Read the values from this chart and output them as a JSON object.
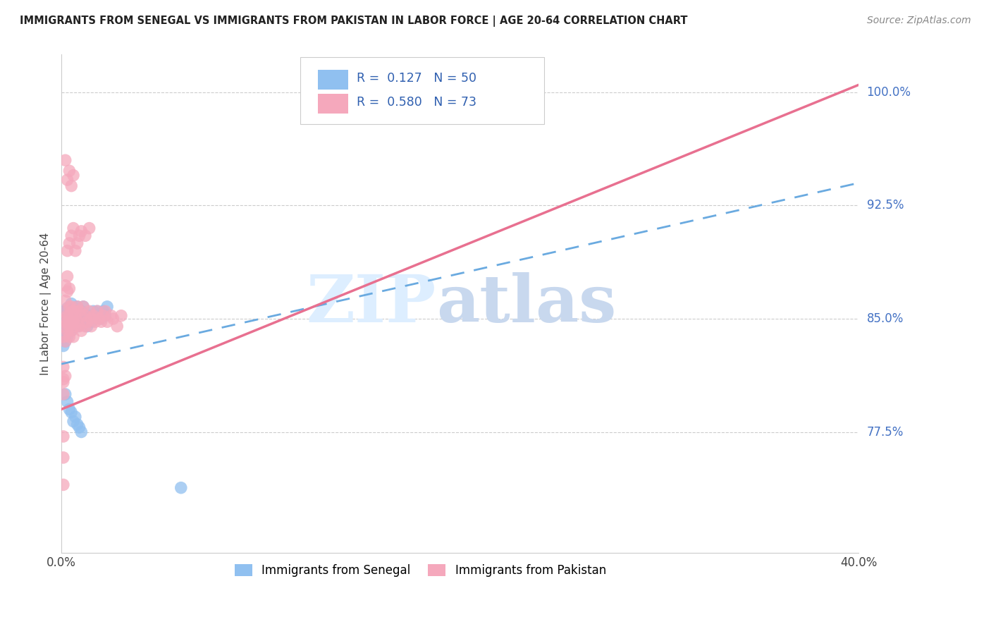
{
  "title": "IMMIGRANTS FROM SENEGAL VS IMMIGRANTS FROM PAKISTAN IN LABOR FORCE | AGE 20-64 CORRELATION CHART",
  "source": "Source: ZipAtlas.com",
  "ylabel": "In Labor Force | Age 20-64",
  "xlim": [
    0.0,
    0.4
  ],
  "ylim": [
    0.695,
    1.025
  ],
  "xtick_positions": [
    0.0,
    0.4
  ],
  "xticklabels": [
    "0.0%",
    "40.0%"
  ],
  "ytick_positions": [
    0.775,
    0.85,
    0.925,
    1.0
  ],
  "ytick_labels": [
    "77.5%",
    "85.0%",
    "92.5%",
    "100.0%"
  ],
  "senegal_R": 0.127,
  "senegal_N": 50,
  "pakistan_R": 0.58,
  "pakistan_N": 73,
  "senegal_color": "#90C0F0",
  "pakistan_color": "#F5A8BC",
  "senegal_line_color": "#6AAAE0",
  "pakistan_line_color": "#E87090",
  "watermark_zip": "ZIP",
  "watermark_atlas": "atlas",
  "watermark_color_zip": "#DDEEFF",
  "watermark_color_atlas": "#C8D8EE",
  "legend_label_senegal": "Immigrants from Senegal",
  "legend_label_pakistan": "Immigrants from Pakistan",
  "sen_line_x0": 0.0,
  "sen_line_y0": 0.82,
  "sen_line_x1": 0.4,
  "sen_line_y1": 0.94,
  "pak_line_x0": 0.0,
  "pak_line_y0": 0.79,
  "pak_line_x1": 0.4,
  "pak_line_y1": 1.005,
  "senegal_pts_x": [
    0.001,
    0.001,
    0.001,
    0.002,
    0.002,
    0.002,
    0.002,
    0.003,
    0.003,
    0.003,
    0.003,
    0.003,
    0.004,
    0.004,
    0.004,
    0.005,
    0.005,
    0.005,
    0.005,
    0.006,
    0.006,
    0.007,
    0.007,
    0.008,
    0.008,
    0.009,
    0.01,
    0.01,
    0.011,
    0.012,
    0.013,
    0.014,
    0.015,
    0.016,
    0.017,
    0.018,
    0.02,
    0.021,
    0.022,
    0.023,
    0.002,
    0.003,
    0.004,
    0.005,
    0.006,
    0.007,
    0.008,
    0.009,
    0.01,
    0.06
  ],
  "senegal_pts_y": [
    0.84,
    0.832,
    0.845,
    0.848,
    0.838,
    0.855,
    0.835,
    0.85,
    0.842,
    0.857,
    0.845,
    0.838,
    0.852,
    0.843,
    0.848,
    0.855,
    0.848,
    0.842,
    0.86,
    0.852,
    0.845,
    0.855,
    0.848,
    0.858,
    0.845,
    0.852,
    0.855,
    0.848,
    0.858,
    0.85,
    0.845,
    0.852,
    0.848,
    0.855,
    0.852,
    0.855,
    0.85,
    0.855,
    0.852,
    0.858,
    0.8,
    0.795,
    0.79,
    0.788,
    0.782,
    0.785,
    0.78,
    0.778,
    0.775,
    0.738
  ],
  "pakistan_pts_x": [
    0.001,
    0.001,
    0.002,
    0.002,
    0.002,
    0.003,
    0.003,
    0.003,
    0.004,
    0.004,
    0.004,
    0.004,
    0.005,
    0.005,
    0.005,
    0.006,
    0.006,
    0.006,
    0.007,
    0.007,
    0.008,
    0.008,
    0.009,
    0.009,
    0.01,
    0.01,
    0.011,
    0.012,
    0.012,
    0.013,
    0.014,
    0.015,
    0.015,
    0.016,
    0.017,
    0.018,
    0.019,
    0.02,
    0.021,
    0.022,
    0.023,
    0.025,
    0.026,
    0.028,
    0.03,
    0.003,
    0.004,
    0.005,
    0.006,
    0.007,
    0.008,
    0.009,
    0.01,
    0.012,
    0.014,
    0.002,
    0.003,
    0.004,
    0.005,
    0.006,
    0.004,
    0.003,
    0.002,
    0.002,
    0.003,
    0.002,
    0.001,
    0.001,
    0.001,
    0.001,
    0.001,
    0.001,
    0.001
  ],
  "pakistan_pts_y": [
    0.848,
    0.838,
    0.855,
    0.845,
    0.835,
    0.852,
    0.842,
    0.848,
    0.858,
    0.845,
    0.838,
    0.852,
    0.858,
    0.848,
    0.842,
    0.855,
    0.848,
    0.838,
    0.852,
    0.845,
    0.858,
    0.848,
    0.855,
    0.845,
    0.852,
    0.842,
    0.858,
    0.852,
    0.845,
    0.848,
    0.855,
    0.85,
    0.845,
    0.852,
    0.848,
    0.855,
    0.85,
    0.848,
    0.852,
    0.855,
    0.848,
    0.852,
    0.85,
    0.845,
    0.852,
    0.895,
    0.9,
    0.905,
    0.91,
    0.895,
    0.9,
    0.905,
    0.908,
    0.905,
    0.91,
    0.955,
    0.942,
    0.948,
    0.938,
    0.945,
    0.87,
    0.878,
    0.862,
    0.872,
    0.868,
    0.812,
    0.808,
    0.818,
    0.8,
    0.81,
    0.772,
    0.758,
    0.74
  ]
}
